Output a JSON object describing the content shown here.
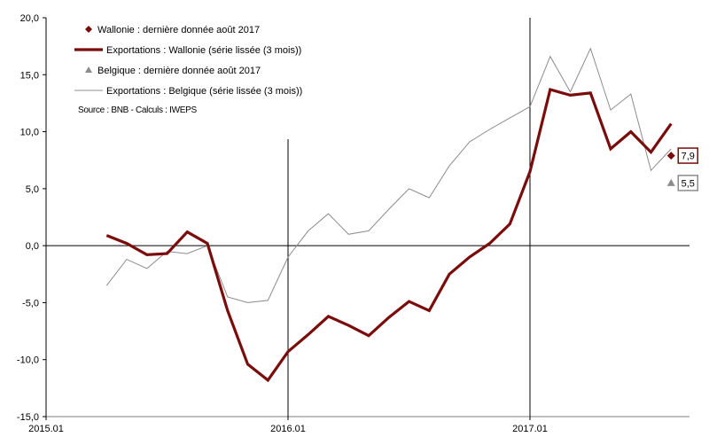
{
  "chart_data": {
    "type": "line",
    "x": [
      "2015.04",
      "2015.05",
      "2015.06",
      "2015.07",
      "2015.08",
      "2015.09",
      "2015.10",
      "2015.11",
      "2015.12",
      "2016.01",
      "2016.02",
      "2016.03",
      "2016.04",
      "2016.05",
      "2016.06",
      "2016.07",
      "2016.08",
      "2016.09",
      "2016.10",
      "2016.11",
      "2016.12",
      "2017.01",
      "2017.02",
      "2017.03",
      "2017.04",
      "2017.05",
      "2017.06",
      "2017.07",
      "2017.08"
    ],
    "x_tick_labels": [
      "2015.01",
      "2016.01",
      "2017.01"
    ],
    "y_tick_labels": [
      "-15,0",
      "-10,0",
      "-5,0",
      "0,0",
      "5,0",
      "10,0",
      "15,0",
      "20,0"
    ],
    "ylim": [
      -15,
      20
    ],
    "grid": false,
    "vertical_markers": [
      "2016.01",
      "2017.01"
    ],
    "series": [
      {
        "name": "Exportations : Belgique (série lissée (3 mois))",
        "color": "#8c8c8c",
        "values": [
          -3.5,
          -1.2,
          -2.0,
          -0.5,
          -0.7,
          0.0,
          -4.5,
          -5.0,
          -4.8,
          -1.0,
          1.3,
          2.8,
          1.0,
          1.3,
          3.2,
          5.0,
          4.2,
          7.0,
          9.1,
          10.2,
          11.2,
          12.2,
          16.6,
          13.5,
          17.3,
          11.9,
          13.3,
          6.6,
          8.5
        ]
      },
      {
        "name": "Exportations : Wallonie (série lissée (3 mois))",
        "color": "#7a0c0c",
        "values": [
          0.9,
          0.2,
          -0.8,
          -0.7,
          1.2,
          0.2,
          -5.7,
          -10.4,
          -11.8,
          -9.3,
          -7.8,
          -6.2,
          -7.0,
          -7.9,
          -6.3,
          -4.9,
          -5.7,
          -2.5,
          -1.0,
          0.2,
          1.9,
          6.5,
          13.7,
          13.2,
          13.4,
          8.5,
          10.0,
          8.2,
          10.7
        ]
      }
    ],
    "end_points": [
      {
        "name": "Wallonie : dernière donnée août 2017",
        "x": "2017.08",
        "value": 7.9,
        "label": "7,9",
        "marker": "diamond",
        "color": "#7a0c0c"
      },
      {
        "name": "Belgique : dernière donnée août 2017",
        "x": "2017.08",
        "value": 5.5,
        "label": "5,5",
        "marker": "triangle",
        "color": "#8c8c8c"
      }
    ],
    "legend": {
      "placement": "top-left",
      "items": [
        {
          "label": "Wallonie : dernière donnée août 2017",
          "kind": "diamond",
          "color": "#7a0c0c"
        },
        {
          "label": "Exportations : Wallonie (série lissée (3 mois))",
          "kind": "thick-line",
          "color": "#7a0c0c"
        },
        {
          "label": "Belgique : dernière donnée août 2017",
          "kind": "triangle",
          "color": "#8c8c8c"
        },
        {
          "label": "Exportations : Belgique (série lissée (3 mois))",
          "kind": "thin-line",
          "color": "#8c8c8c"
        }
      ]
    },
    "source_note": "Source : BNB - Calculs : IWEPS"
  }
}
